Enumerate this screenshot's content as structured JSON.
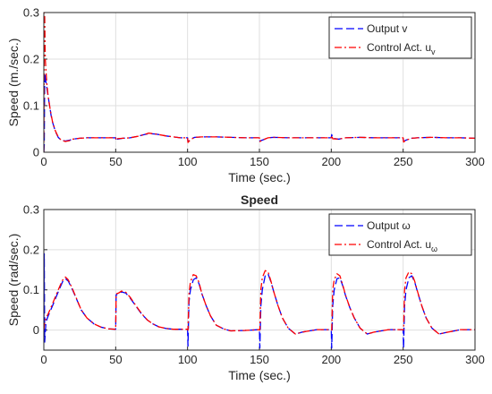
{
  "chart_data": [
    {
      "type": "line",
      "title": "",
      "xlabel": "Time (sec.)",
      "ylabel": "Speed (m./sec.)",
      "xlim": [
        0,
        300
      ],
      "ylim": [
        0,
        0.3
      ],
      "xticks": [
        "0",
        "50",
        "100",
        "150",
        "200",
        "250",
        "300"
      ],
      "yticks": [
        "0",
        "0.1",
        "0.2",
        "0.3"
      ],
      "grid": true,
      "legend_position": "top-right",
      "series": [
        {
          "name": "Output v",
          "color": "#0000ff",
          "dash": "dashed",
          "x": [
            0,
            0.3,
            0.6,
            1,
            2,
            3,
            4,
            5,
            6,
            8,
            10,
            12,
            15,
            18,
            20,
            25,
            30,
            40,
            50,
            50.3,
            51,
            55,
            60,
            65,
            70,
            73,
            78,
            85,
            90,
            95,
            100,
            100.3,
            102,
            105,
            110,
            120,
            130,
            140,
            150,
            150.3,
            152,
            156,
            160,
            170,
            180,
            190,
            200,
            200.3,
            201,
            205,
            210,
            220,
            230,
            240,
            250,
            250.3,
            252,
            256,
            260,
            270,
            280,
            290,
            300
          ],
          "y": [
            0,
            0.015,
            0.17,
            0.16,
            0.14,
            0.12,
            0.1,
            0.08,
            0.065,
            0.045,
            0.032,
            0.026,
            0.024,
            0.026,
            0.028,
            0.03,
            0.031,
            0.031,
            0.031,
            0.024,
            0.028,
            0.03,
            0.031,
            0.034,
            0.038,
            0.04,
            0.039,
            0.035,
            0.033,
            0.031,
            0.031,
            0.022,
            0.028,
            0.032,
            0.033,
            0.033,
            0.032,
            0.031,
            0.031,
            0.024,
            0.026,
            0.031,
            0.032,
            0.031,
            0.031,
            0.031,
            0.031,
            0.038,
            0.03,
            0.028,
            0.031,
            0.032,
            0.031,
            0.031,
            0.031,
            0.023,
            0.026,
            0.03,
            0.031,
            0.032,
            0.031,
            0.031,
            0.03
          ]
        },
        {
          "name": "Control Act. u",
          "name_subscript": "v",
          "color": "#ff0000",
          "dash": "dashdot",
          "x": [
            0,
            0.3,
            0.6,
            1,
            2,
            3,
            4,
            5,
            6,
            8,
            10,
            12,
            15,
            18,
            20,
            25,
            30,
            40,
            50,
            50.3,
            51,
            55,
            60,
            65,
            70,
            73,
            78,
            85,
            90,
            95,
            100,
            100.3,
            102,
            105,
            110,
            120,
            130,
            140,
            150,
            150.3,
            152,
            156,
            160,
            170,
            180,
            190,
            200,
            200.3,
            201,
            205,
            210,
            220,
            230,
            240,
            250,
            250.3,
            252,
            256,
            260,
            270,
            280,
            290,
            300
          ],
          "y": [
            0,
            0.3,
            0.29,
            0.2,
            0.15,
            0.12,
            0.1,
            0.082,
            0.066,
            0.046,
            0.033,
            0.026,
            0.023,
            0.025,
            0.028,
            0.03,
            0.031,
            0.031,
            0.031,
            0.026,
            0.029,
            0.03,
            0.031,
            0.034,
            0.038,
            0.041,
            0.039,
            0.035,
            0.033,
            0.031,
            0.031,
            0.021,
            0.027,
            0.032,
            0.033,
            0.033,
            0.032,
            0.031,
            0.031,
            0.023,
            0.026,
            0.031,
            0.032,
            0.031,
            0.031,
            0.031,
            0.031,
            0.036,
            0.029,
            0.028,
            0.031,
            0.032,
            0.031,
            0.031,
            0.031,
            0.022,
            0.026,
            0.03,
            0.031,
            0.032,
            0.031,
            0.031,
            0.03
          ]
        }
      ]
    },
    {
      "type": "line",
      "title": "Speed",
      "xlabel": "Time (sec.)",
      "ylabel": "Speed (rad/sec.)",
      "xlim": [
        0,
        300
      ],
      "ylim": [
        -0.05,
        0.3
      ],
      "xticks": [
        "0",
        "50",
        "100",
        "150",
        "200",
        "250",
        "300"
      ],
      "yticks": [
        "0",
        "0.1",
        "0.2",
        "0.3"
      ],
      "grid": true,
      "legend_position": "top-right",
      "series": [
        {
          "name": "Output ω",
          "color": "#0000ff",
          "dash": "dashed",
          "x": [
            0,
            0.3,
            0.6,
            1.5,
            3,
            6,
            10,
            13,
            15,
            17,
            20,
            23,
            26,
            30,
            35,
            40,
            45,
            49.8,
            50,
            50.3,
            52,
            54,
            57,
            60,
            64,
            68,
            72,
            76,
            80,
            85,
            90,
            95,
            99.8,
            100,
            100.3,
            101,
            102,
            104,
            106,
            108,
            110,
            113,
            116,
            120,
            125,
            130,
            140,
            149.8,
            150,
            150.3,
            151,
            152,
            154,
            156,
            158,
            160,
            163,
            166,
            170,
            175,
            180,
            190,
            199.8,
            200,
            200.3,
            201,
            202,
            204,
            206,
            208,
            210,
            213,
            216,
            220,
            225,
            230,
            240,
            249.8,
            250,
            250.3,
            251,
            252,
            254,
            256,
            258,
            260,
            263,
            266,
            270,
            275,
            280,
            290,
            300
          ],
          "y": [
            0,
            0.19,
            -0.03,
            0.02,
            0.035,
            0.06,
            0.095,
            0.12,
            0.128,
            0.122,
            0.1,
            0.075,
            0.05,
            0.03,
            0.015,
            0.007,
            0.003,
            0.002,
            0.002,
            0.088,
            0.09,
            0.095,
            0.092,
            0.08,
            0.06,
            0.04,
            0.025,
            0.015,
            0.008,
            0.004,
            0.002,
            0.002,
            0.002,
            0.002,
            -0.04,
            0.07,
            0.1,
            0.125,
            0.13,
            0.115,
            0.09,
            0.06,
            0.035,
            0.012,
            0.003,
            -0.002,
            -0.001,
            0.001,
            0.001,
            -0.045,
            0.06,
            0.1,
            0.135,
            0.14,
            0.12,
            0.095,
            0.06,
            0.03,
            0.005,
            -0.01,
            -0.005,
            0.001,
            0.001,
            0.001,
            -0.045,
            0.06,
            0.1,
            0.128,
            0.13,
            0.11,
            0.085,
            0.055,
            0.03,
            0.005,
            -0.01,
            -0.005,
            0.001,
            0.001,
            0.001,
            -0.045,
            0.06,
            0.1,
            0.13,
            0.135,
            0.12,
            0.095,
            0.06,
            0.03,
            0.005,
            -0.01,
            -0.006,
            0.001,
            0.001
          ]
        },
        {
          "name": "Control Act. u",
          "name_subscript": "ω",
          "color": "#ff0000",
          "dash": "dashdot",
          "x": [
            0,
            0.3,
            0.6,
            1.5,
            3,
            6,
            10,
            13,
            15,
            17,
            20,
            23,
            26,
            30,
            35,
            40,
            45,
            49.8,
            50,
            50.3,
            52,
            54,
            57,
            60,
            64,
            68,
            72,
            76,
            80,
            85,
            90,
            95,
            99.8,
            100,
            100.3,
            101,
            102,
            104,
            106,
            108,
            110,
            113,
            116,
            120,
            125,
            130,
            140,
            149.8,
            150,
            150.3,
            151,
            152,
            154,
            156,
            158,
            160,
            163,
            166,
            170,
            175,
            180,
            190,
            199.8,
            200,
            200.3,
            201,
            202,
            204,
            206,
            208,
            210,
            213,
            216,
            220,
            225,
            230,
            240,
            249.8,
            250,
            250.3,
            251,
            252,
            254,
            256,
            258,
            260,
            263,
            266,
            270,
            275,
            280,
            290,
            300
          ],
          "y": [
            0,
            0.01,
            0.02,
            0.03,
            0.04,
            0.065,
            0.1,
            0.124,
            0.132,
            0.125,
            0.102,
            0.076,
            0.05,
            0.03,
            0.015,
            0.007,
            0.003,
            0.002,
            0.002,
            0.09,
            0.092,
            0.097,
            0.094,
            0.082,
            0.061,
            0.041,
            0.025,
            0.015,
            0.008,
            0.004,
            0.002,
            0.002,
            0.002,
            0.002,
            0.0,
            0.09,
            0.12,
            0.138,
            0.135,
            0.118,
            0.09,
            0.06,
            0.035,
            0.012,
            0.003,
            -0.002,
            -0.001,
            0.001,
            0.001,
            0.0,
            0.1,
            0.13,
            0.148,
            0.145,
            0.122,
            0.095,
            0.06,
            0.03,
            0.005,
            -0.01,
            -0.005,
            0.001,
            0.001,
            0.001,
            0.0,
            0.1,
            0.125,
            0.14,
            0.135,
            0.112,
            0.086,
            0.055,
            0.03,
            0.005,
            -0.01,
            -0.005,
            0.001,
            0.001,
            0.001,
            0.0,
            0.1,
            0.13,
            0.145,
            0.14,
            0.122,
            0.096,
            0.06,
            0.03,
            0.005,
            -0.01,
            -0.006,
            0.001,
            0.001
          ]
        }
      ]
    }
  ]
}
